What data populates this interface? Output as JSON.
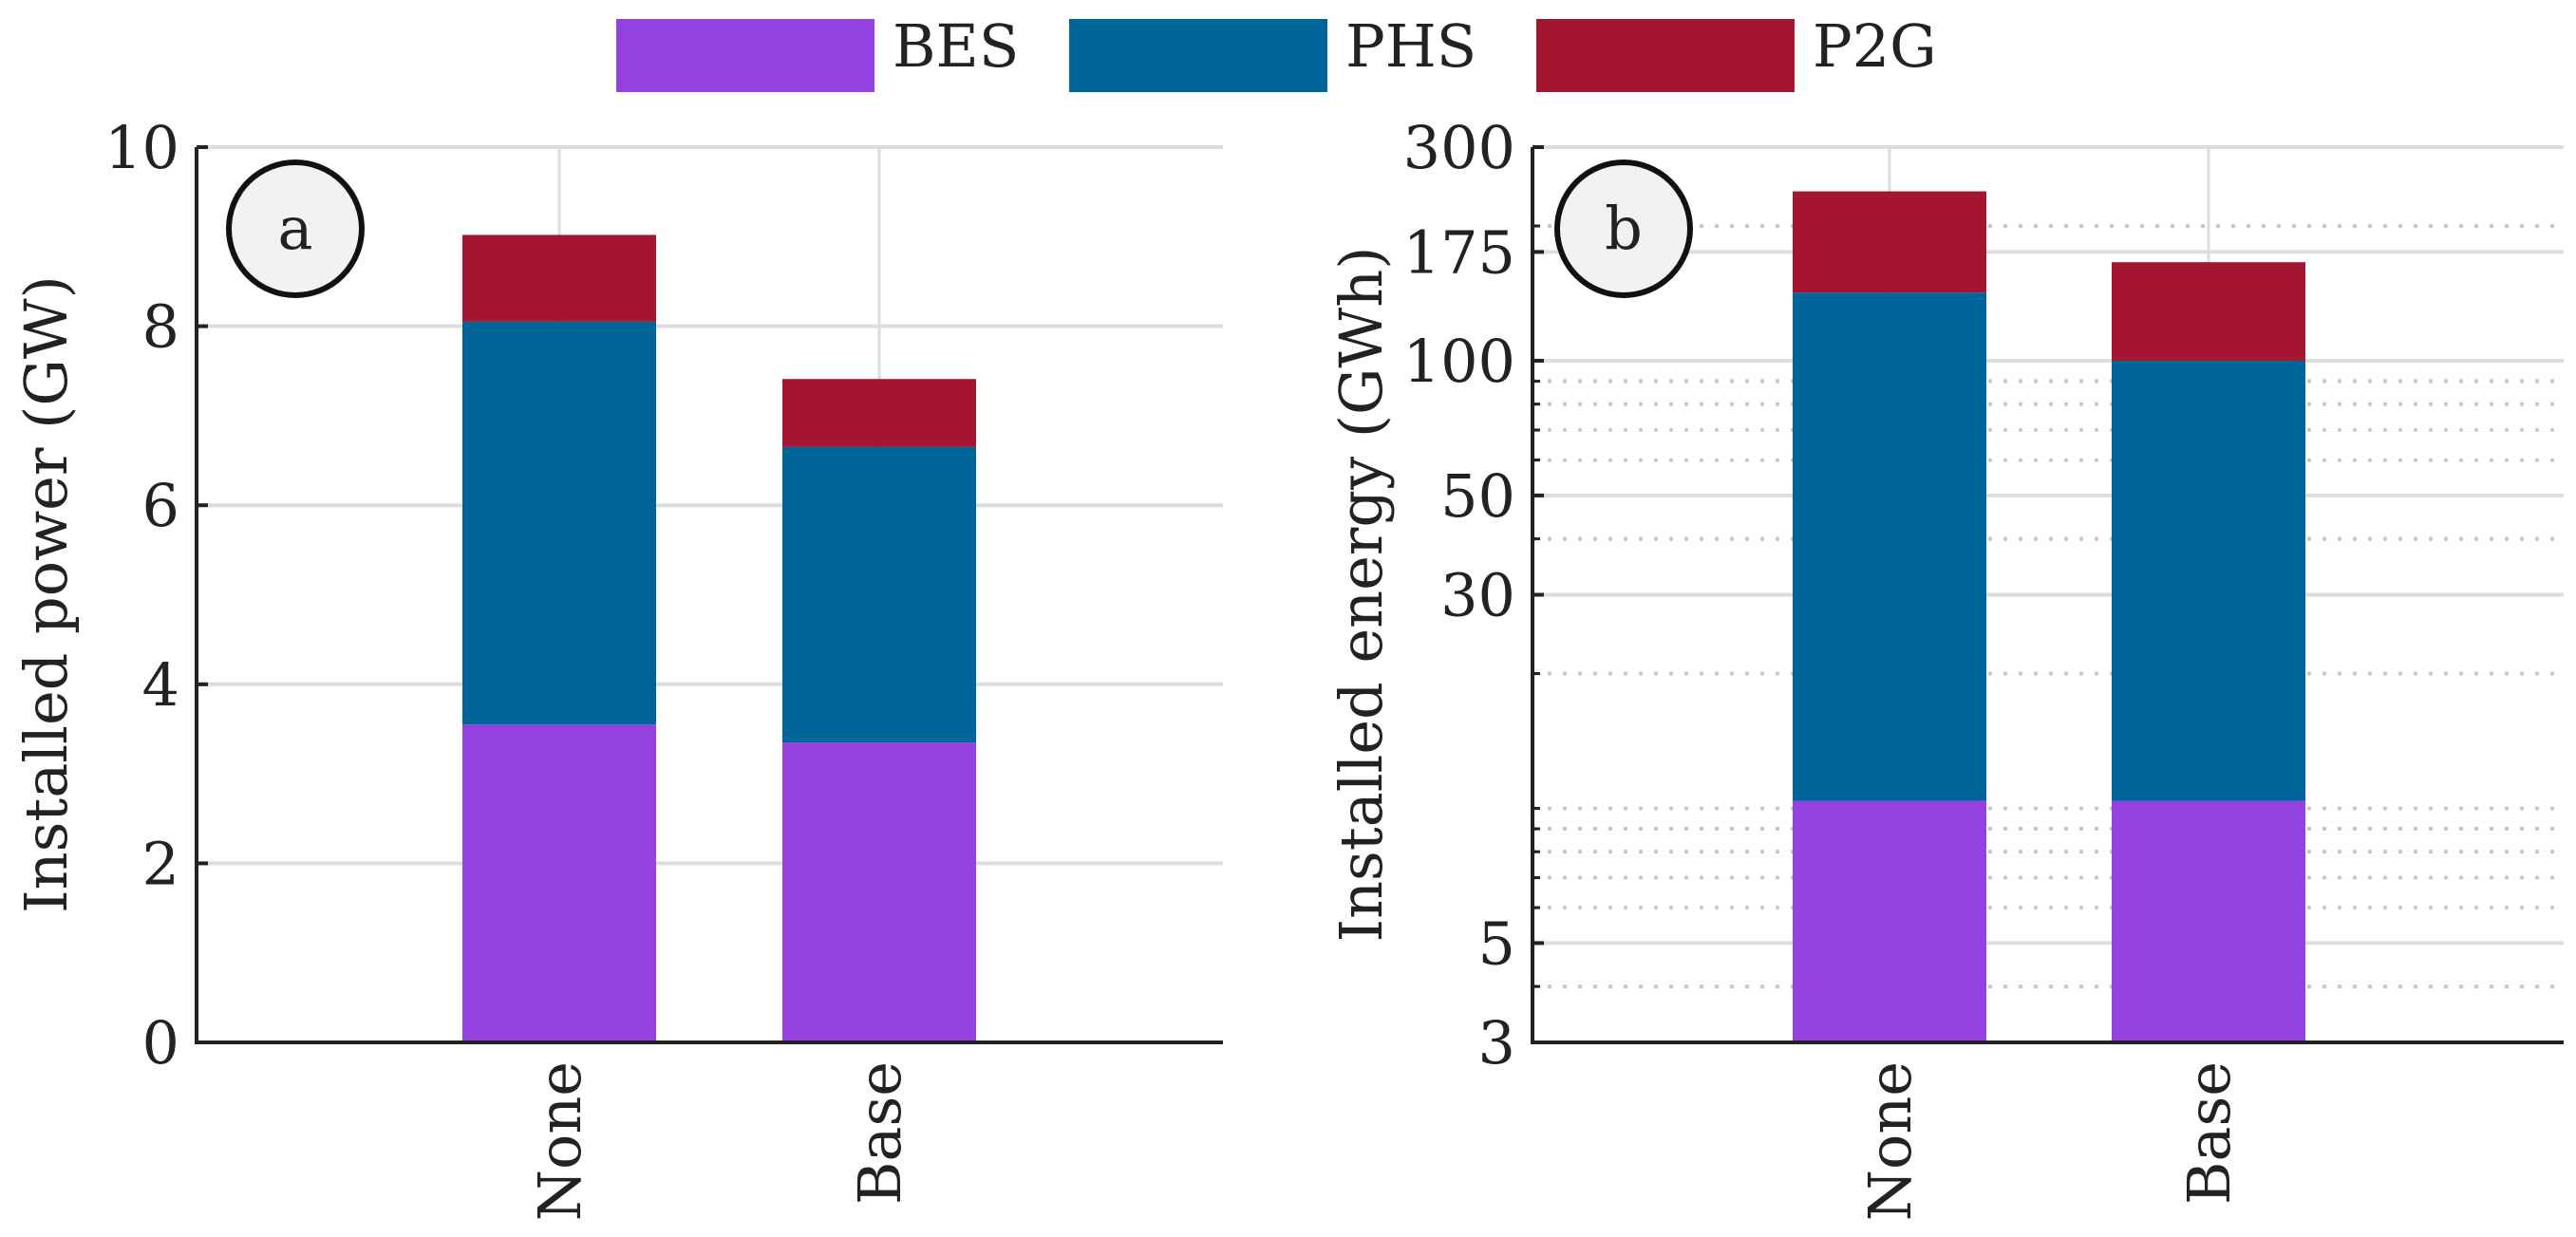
{
  "legend": [
    {
      "name": "BES",
      "color": "#9342E0"
    },
    {
      "name": "PHS",
      "color": "#006699"
    },
    {
      "name": "P2G",
      "color": "#A31530"
    }
  ],
  "chart_data": [
    {
      "type": "bar",
      "stacked": true,
      "panel_label": "a",
      "title": "",
      "xlabel": "",
      "ylabel": "Installed power (GW)",
      "categories": [
        "None",
        "Base"
      ],
      "series": [
        {
          "name": "BES",
          "values": [
            3.55,
            3.35
          ]
        },
        {
          "name": "PHS",
          "values": [
            4.5,
            3.3
          ]
        },
        {
          "name": "P2G",
          "values": [
            0.97,
            0.76
          ]
        }
      ],
      "ylim": [
        0,
        10
      ],
      "yscale": "linear",
      "yticks": [
        0,
        2,
        4,
        6,
        8,
        10
      ],
      "ytick_labels": [
        "0",
        "2",
        "4",
        "6",
        "8",
        "10"
      ],
      "grid": true,
      "legend_position": "top"
    },
    {
      "type": "bar",
      "stacked": true,
      "panel_label": "b",
      "title": "",
      "xlabel": "",
      "ylabel": "Installed energy (GWh)",
      "categories": [
        "None",
        "Base"
      ],
      "series": [
        {
          "name": "BES",
          "values": [
            10.4,
            10.4
          ]
        },
        {
          "name": "PHS",
          "values": [
            131.6,
            89.6
          ]
        },
        {
          "name": "P2G",
          "values": [
            97,
            66
          ]
        }
      ],
      "ylim": [
        3,
        300
      ],
      "yscale": "log",
      "yticks": [
        3,
        5,
        30,
        50,
        100,
        175,
        300
      ],
      "ytick_labels": [
        "3",
        "5",
        "30",
        "50",
        "100",
        "175",
        "300"
      ],
      "minor_gridlines": [
        4,
        6,
        7,
        8,
        9,
        10,
        20,
        40,
        60,
        70,
        80,
        90,
        200
      ],
      "grid": true,
      "legend_position": "top"
    }
  ]
}
